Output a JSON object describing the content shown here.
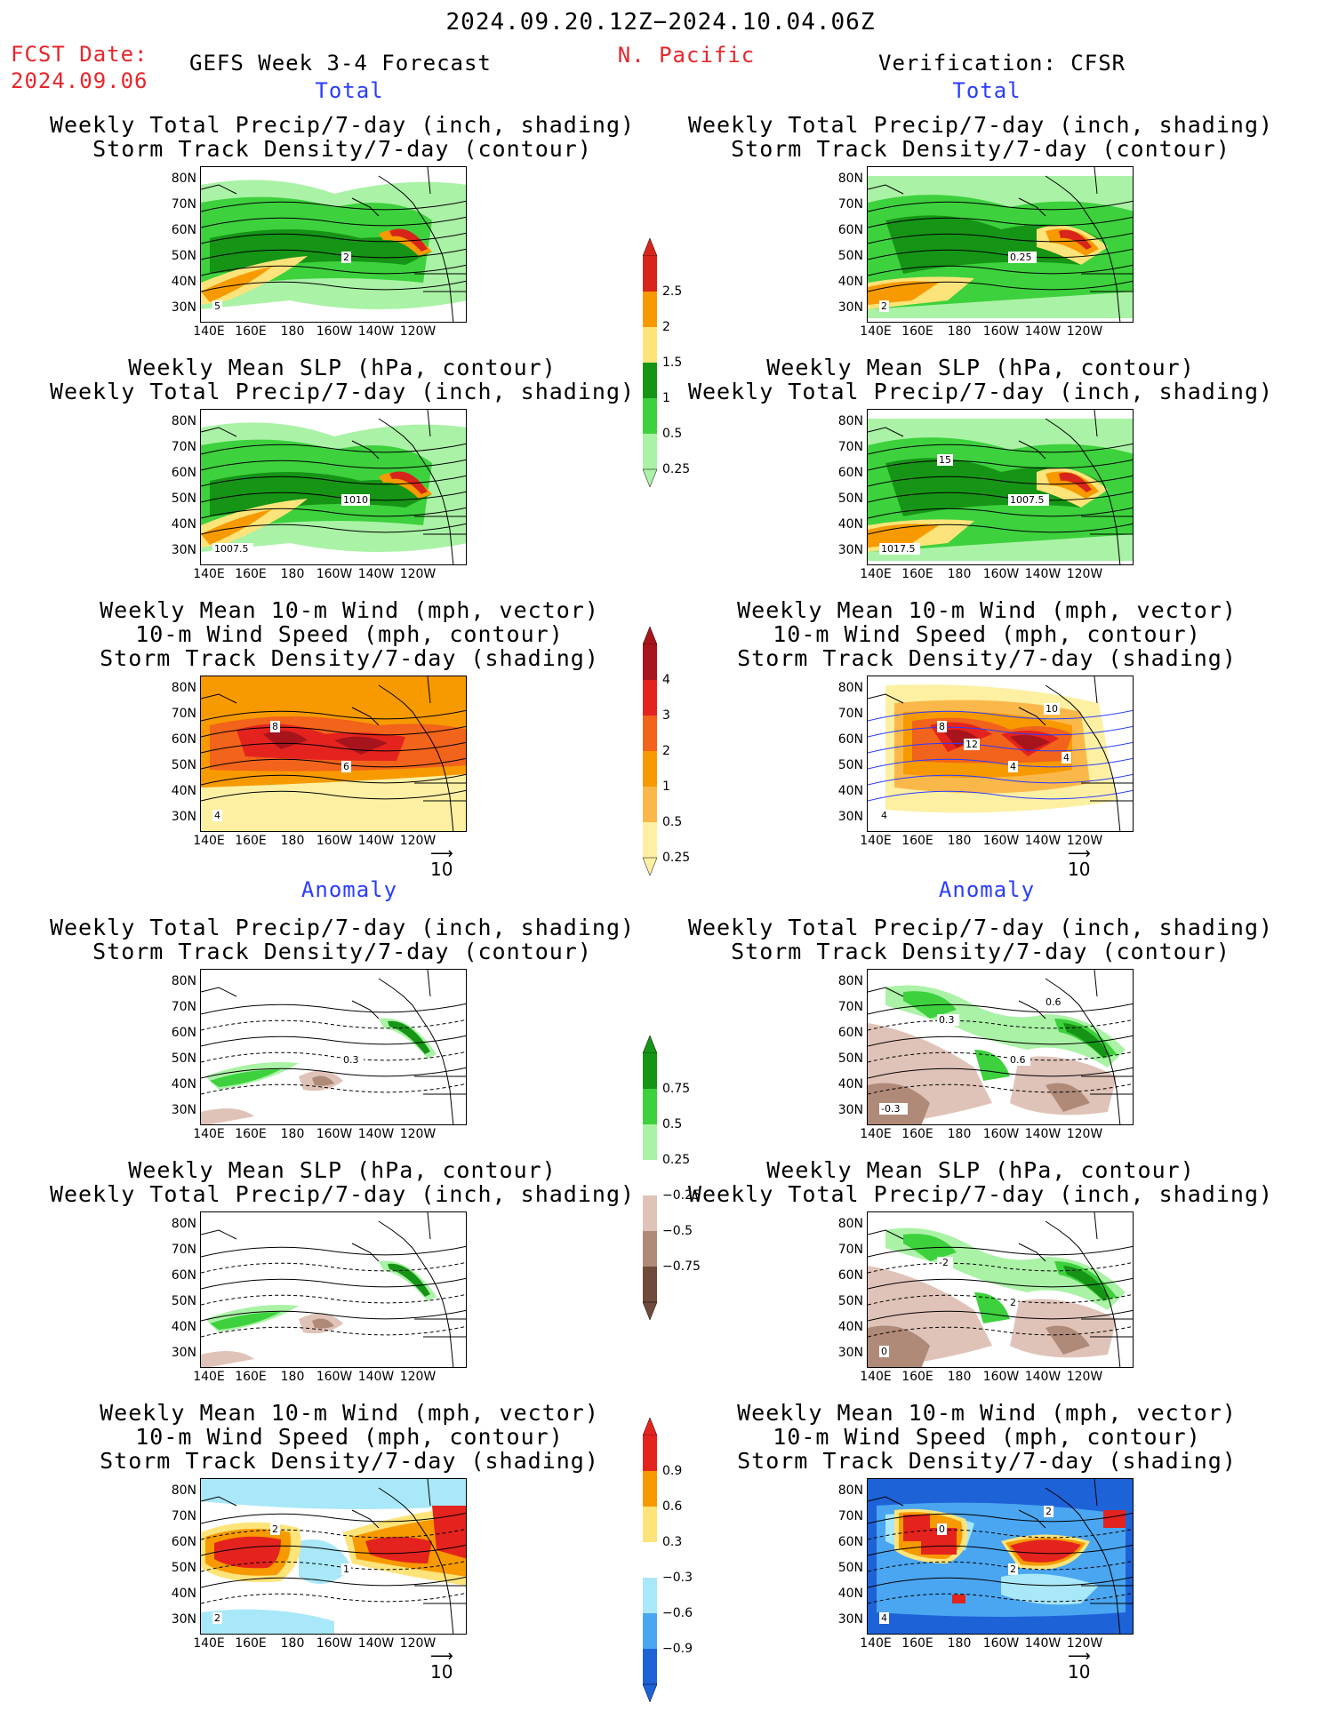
{
  "header": {
    "period": "2024.09.20.12Z−2024.10.04.06Z",
    "fcst_label": "FCST Date:",
    "fcst_date": "2024.09.06",
    "model": "GEFS Week 3-4 Forecast",
    "region": "N. Pacific",
    "verification": "Verification: CFSR",
    "section_total": "Total",
    "section_anomaly": "Anomaly"
  },
  "titles": {
    "precip_track": [
      "Weekly Total Precip/7-day (inch, shading)",
      "Storm Track Density/7-day (contour)"
    ],
    "slp_precip": [
      "Weekly Mean SLP (hPa, contour)",
      "Weekly Total Precip/7-day (inch, shading)"
    ],
    "wind_track": [
      "Weekly Mean 10-m Wind (mph, vector)",
      "10-m Wind Speed (mph, contour)",
      "Storm Track Density/7-day (shading)"
    ]
  },
  "axes": {
    "lat": [
      "80N",
      "70N",
      "60N",
      "50N",
      "40N",
      "30N"
    ],
    "lon": [
      "140E",
      "160E",
      "180",
      "160W",
      "140W",
      "120W"
    ]
  },
  "ref_vector": "10",
  "colorbars": {
    "precip_total": {
      "labels": [
        "2.5",
        "2",
        "1.5",
        "1",
        "0.5",
        "0.25"
      ],
      "colors": [
        "#d8251b",
        "#f79a00",
        "#fde47a",
        "#169416",
        "#3dd13d",
        "#aaf2a6"
      ]
    },
    "track_total": {
      "labels": [
        "4",
        "3",
        "2",
        "1",
        "0.5",
        "0.25"
      ],
      "colors": [
        "#a8141b",
        "#e4231e",
        "#f2631b",
        "#f79a00",
        "#fbb84a",
        "#fdf0a2"
      ]
    },
    "precip_anom": {
      "labels": [
        "0.75",
        "0.5",
        "0.25",
        "−0.25",
        "−0.5",
        "−0.75"
      ],
      "colors": [
        "#169416",
        "#3dd13d",
        "#aaf2a6",
        "#ffffff",
        "#e0c3b8",
        "#b08a78",
        "#6e4b3a"
      ]
    },
    "track_anom": {
      "labels": [
        "0.9",
        "0.6",
        "0.3",
        "−0.3",
        "−0.6",
        "−0.9"
      ],
      "colors": [
        "#e4231e",
        "#f79a00",
        "#fde47a",
        "#ffffff",
        "#a9e8f8",
        "#4aa6f0",
        "#1e62d8"
      ]
    }
  },
  "panel_labels": {
    "p1_left": [
      "2",
      "5"
    ],
    "p1_right": [
      "0.25",
      "2"
    ],
    "p2_left": [
      "1010",
      "1007.5"
    ],
    "p2_right": [
      "1007.5",
      "1017.5",
      "15"
    ],
    "p3_left": [
      "6",
      "4",
      "8"
    ],
    "p3_right": [
      "4",
      "4",
      "8",
      "10",
      "12",
      "4"
    ],
    "p4_left": [
      "0.3"
    ],
    "p4_right": [
      "0.6",
      "-0.3",
      "0.3",
      "0.6"
    ],
    "p5_left": [],
    "p5_right": [
      "2",
      "0",
      "-2"
    ],
    "p6_left": [
      "1",
      "2",
      "2"
    ],
    "p6_right": [
      "2",
      "4",
      "0",
      "2"
    ]
  }
}
